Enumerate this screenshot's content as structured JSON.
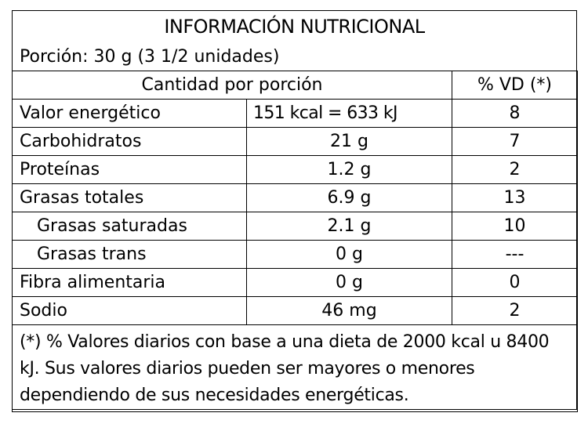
{
  "title": "INFORMACIÓN NUTRICIONAL",
  "portion": "Porción: 30 g (3 1/2 unidades)",
  "header": {
    "amount": "Cantidad por porción",
    "dv": "% VD (*)"
  },
  "rows": [
    {
      "name": "Valor energético",
      "amount": "151 kcal = 633 kJ",
      "dv": "8"
    },
    {
      "name": "Carbohidratos",
      "amount": "21 g",
      "dv": "7"
    },
    {
      "name": "Proteínas",
      "amount": "1.2 g",
      "dv": "2"
    },
    {
      "name": "Grasas totales",
      "amount": "6.9 g",
      "dv": "13"
    },
    {
      "name": "Grasas saturadas",
      "amount": "2.1 g",
      "dv": "10"
    },
    {
      "name": "Grasas trans",
      "amount": "0 g",
      "dv": "---"
    },
    {
      "name": "Fibra alimentaria",
      "amount": "0 g",
      "dv": "0"
    },
    {
      "name": "Sodio",
      "amount": "46 mg",
      "dv": "2"
    }
  ],
  "footnote": "(*) % Valores diarios con base a una dieta de 2000 kcal u 8400 kJ. Sus valores diarios pueden ser mayores o menores dependiendo de sus necesidades energéticas."
}
